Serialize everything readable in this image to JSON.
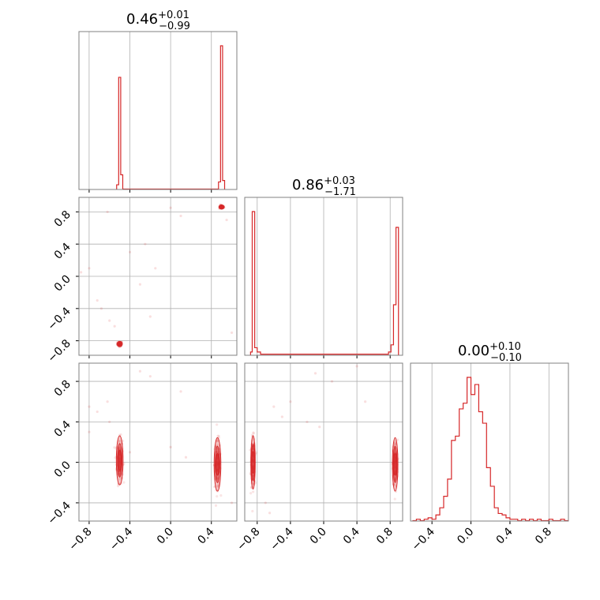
{
  "chart_data": {
    "type": "corner",
    "colors": {
      "series": "#d62728",
      "grid": "#b0b0b0",
      "frame": "#808080"
    },
    "grid": true,
    "panels": [
      {
        "id": "hist-0",
        "kind": "histogram",
        "title": {
          "value": "0.46",
          "plus": "+0.01",
          "minus": "−0.99"
        },
        "xlim": [
          -0.9,
          0.65
        ],
        "gridlines_x": [
          -0.8,
          -0.4,
          0.0,
          0.4
        ],
        "bins": [
          {
            "lo": -0.53,
            "hi": -0.51,
            "h": 0.03
          },
          {
            "lo": -0.51,
            "hi": -0.49,
            "h": 0.78
          },
          {
            "lo": -0.49,
            "hi": -0.47,
            "h": 0.1
          },
          {
            "lo": 0.47,
            "hi": 0.49,
            "h": 0.05
          },
          {
            "lo": 0.49,
            "hi": 0.51,
            "h": 1.0
          },
          {
            "lo": 0.51,
            "hi": 0.53,
            "h": 0.06
          }
        ]
      },
      {
        "id": "scatter-1-0",
        "kind": "scatter",
        "xlim": [
          -0.9,
          0.65
        ],
        "ylim": [
          -0.98,
          0.98
        ],
        "gridlines_x": [
          -0.8,
          -0.4,
          0.0,
          0.4
        ],
        "gridlines_y": [
          -0.8,
          -0.4,
          0.0,
          0.4,
          0.8
        ],
        "yticks": [
          "−0.8",
          "−0.4",
          "0.0",
          "0.4",
          "0.8"
        ],
        "yticks_values": [
          -0.8,
          -0.4,
          0.0,
          0.4,
          0.8
        ],
        "clusters": [
          {
            "x": -0.5,
            "y": -0.84,
            "sx": 0.012,
            "sy": 0.015,
            "n": 60
          },
          {
            "x": 0.5,
            "y": 0.86,
            "sx": 0.012,
            "sy": 0.012,
            "n": 60
          }
        ],
        "scatter": [
          [
            -0.72,
            -0.3
          ],
          [
            -0.68,
            -0.4
          ],
          [
            -0.6,
            -0.55
          ],
          [
            -0.55,
            -0.62
          ],
          [
            -0.3,
            -0.1
          ],
          [
            -0.25,
            0.4
          ],
          [
            -0.15,
            0.1
          ],
          [
            0.0,
            0.85
          ],
          [
            0.1,
            0.75
          ],
          [
            0.6,
            -0.7
          ],
          [
            -0.4,
            0.3
          ],
          [
            -0.8,
            0.1
          ],
          [
            -0.62,
            0.8
          ],
          [
            -0.2,
            -0.5
          ],
          [
            0.55,
            0.7
          ],
          [
            -0.88,
            0.05
          ]
        ]
      },
      {
        "id": "hist-1",
        "kind": "histogram",
        "title": {
          "value": "0.86",
          "plus": "+0.03",
          "minus": "−1.71"
        },
        "xlim": [
          -0.95,
          0.95
        ],
        "gridlines_x": [
          -0.8,
          -0.4,
          0.0,
          0.4,
          0.8
        ],
        "bins": [
          {
            "lo": -0.88,
            "hi": -0.86,
            "h": 0.02
          },
          {
            "lo": -0.86,
            "hi": -0.83,
            "h": 1.0
          },
          {
            "lo": -0.83,
            "hi": -0.8,
            "h": 0.05
          },
          {
            "lo": -0.8,
            "hi": -0.76,
            "h": 0.02
          },
          {
            "lo": -0.76,
            "hi": 0.78,
            "h": 0.005
          },
          {
            "lo": 0.78,
            "hi": 0.81,
            "h": 0.02
          },
          {
            "lo": 0.81,
            "hi": 0.84,
            "h": 0.07
          },
          {
            "lo": 0.84,
            "hi": 0.87,
            "h": 0.35
          },
          {
            "lo": 0.87,
            "hi": 0.9,
            "h": 0.89
          }
        ]
      },
      {
        "id": "scatter-2-0",
        "kind": "scatter",
        "xlim": [
          -0.9,
          0.65
        ],
        "ylim": [
          -0.58,
          0.98
        ],
        "gridlines_x": [
          -0.8,
          -0.4,
          0.0,
          0.4
        ],
        "gridlines_y": [
          -0.4,
          0.0,
          0.4,
          0.8
        ],
        "yticks": [
          "−0.4",
          "0.0",
          "0.4",
          "0.8"
        ],
        "yticks_values": [
          -0.4,
          0.0,
          0.4,
          0.8
        ],
        "xticks": [
          "−0.8",
          "−0.4",
          "0.0",
          "0.4"
        ],
        "xticks_values": [
          -0.8,
          -0.4,
          0.0,
          0.4
        ],
        "clusters": [
          {
            "x": -0.5,
            "y": 0.02,
            "sx": 0.015,
            "sy": 0.11,
            "n": 140
          },
          {
            "x": 0.46,
            "y": -0.02,
            "sx": 0.015,
            "sy": 0.12,
            "n": 140
          }
        ],
        "scatter": [
          [
            -0.8,
            0.55
          ],
          [
            -0.72,
            0.5
          ],
          [
            -0.62,
            0.6
          ],
          [
            -0.3,
            0.9
          ],
          [
            -0.2,
            0.85
          ],
          [
            0.1,
            0.7
          ],
          [
            -0.6,
            0.4
          ],
          [
            -0.4,
            0.1
          ],
          [
            0.0,
            0.15
          ],
          [
            0.15,
            0.05
          ],
          [
            0.6,
            -0.4
          ],
          [
            -0.8,
            0.3
          ]
        ]
      },
      {
        "id": "scatter-2-1",
        "kind": "scatter",
        "xlim": [
          -0.95,
          0.95
        ],
        "ylim": [
          -0.58,
          0.98
        ],
        "gridlines_x": [
          -0.8,
          -0.4,
          0.0,
          0.4,
          0.8
        ],
        "gridlines_y": [
          -0.4,
          0.0,
          0.4,
          0.8
        ],
        "xticks": [
          "−0.8",
          "−0.4",
          "0.0",
          "0.4",
          "0.8"
        ],
        "xticks_values": [
          -0.8,
          -0.4,
          0.0,
          0.4,
          0.8
        ],
        "clusters": [
          {
            "x": -0.85,
            "y": 0.0,
            "sx": 0.012,
            "sy": 0.12,
            "n": 140
          },
          {
            "x": 0.86,
            "y": -0.02,
            "sx": 0.015,
            "sy": 0.12,
            "n": 140
          }
        ],
        "scatter": [
          [
            -0.6,
            0.55
          ],
          [
            -0.5,
            0.45
          ],
          [
            -0.4,
            0.6
          ],
          [
            -0.1,
            0.88
          ],
          [
            0.1,
            0.8
          ],
          [
            0.4,
            0.95
          ],
          [
            -0.2,
            0.4
          ],
          [
            -0.05,
            0.35
          ],
          [
            0.5,
            0.6
          ],
          [
            -0.7,
            -0.4
          ],
          [
            -0.65,
            -0.5
          ]
        ]
      },
      {
        "id": "hist-2",
        "kind": "histogram",
        "title": {
          "value": "0.00",
          "plus": "+0.10",
          "minus": "−0.10"
        },
        "xlim": [
          -0.62,
          1.0
        ],
        "gridlines_x": [
          -0.4,
          0.0,
          0.4,
          0.8
        ],
        "xticks": [
          "−0.4",
          "0.0",
          "0.4",
          "0.8"
        ],
        "xticks_values": [
          -0.4,
          0.0,
          0.4,
          0.8
        ],
        "bins": [
          {
            "lo": -0.6,
            "hi": -0.56,
            "h": 0.0
          },
          {
            "lo": -0.56,
            "hi": -0.52,
            "h": 0.01
          },
          {
            "lo": -0.52,
            "hi": -0.48,
            "h": 0.0
          },
          {
            "lo": -0.48,
            "hi": -0.44,
            "h": 0.01
          },
          {
            "lo": -0.44,
            "hi": -0.4,
            "h": 0.02
          },
          {
            "lo": -0.4,
            "hi": -0.36,
            "h": 0.01
          },
          {
            "lo": -0.36,
            "hi": -0.32,
            "h": 0.04
          },
          {
            "lo": -0.32,
            "hi": -0.28,
            "h": 0.09
          },
          {
            "lo": -0.28,
            "hi": -0.24,
            "h": 0.17
          },
          {
            "lo": -0.24,
            "hi": -0.2,
            "h": 0.29
          },
          {
            "lo": -0.2,
            "hi": -0.16,
            "h": 0.56
          },
          {
            "lo": -0.16,
            "hi": -0.12,
            "h": 0.59
          },
          {
            "lo": -0.12,
            "hi": -0.08,
            "h": 0.78
          },
          {
            "lo": -0.08,
            "hi": -0.04,
            "h": 0.82
          },
          {
            "lo": -0.04,
            "hi": 0.0,
            "h": 1.0
          },
          {
            "lo": 0.0,
            "hi": 0.04,
            "h": 0.88
          },
          {
            "lo": 0.04,
            "hi": 0.08,
            "h": 0.95
          },
          {
            "lo": 0.08,
            "hi": 0.12,
            "h": 0.76
          },
          {
            "lo": 0.12,
            "hi": 0.16,
            "h": 0.68
          },
          {
            "lo": 0.16,
            "hi": 0.2,
            "h": 0.37
          },
          {
            "lo": 0.2,
            "hi": 0.24,
            "h": 0.24
          },
          {
            "lo": 0.24,
            "hi": 0.28,
            "h": 0.09
          },
          {
            "lo": 0.28,
            "hi": 0.32,
            "h": 0.05
          },
          {
            "lo": 0.32,
            "hi": 0.36,
            "h": 0.04
          },
          {
            "lo": 0.36,
            "hi": 0.4,
            "h": 0.02
          },
          {
            "lo": 0.4,
            "hi": 0.44,
            "h": 0.01
          },
          {
            "lo": 0.44,
            "hi": 0.48,
            "h": 0.01
          },
          {
            "lo": 0.48,
            "hi": 0.52,
            "h": 0.0
          },
          {
            "lo": 0.52,
            "hi": 0.56,
            "h": 0.01
          },
          {
            "lo": 0.56,
            "hi": 0.6,
            "h": 0.0
          },
          {
            "lo": 0.6,
            "hi": 0.64,
            "h": 0.01
          },
          {
            "lo": 0.64,
            "hi": 0.68,
            "h": 0.0
          },
          {
            "lo": 0.68,
            "hi": 0.72,
            "h": 0.01
          },
          {
            "lo": 0.72,
            "hi": 0.76,
            "h": 0.0
          },
          {
            "lo": 0.76,
            "hi": 0.8,
            "h": 0.0
          },
          {
            "lo": 0.8,
            "hi": 0.84,
            "h": 0.01
          },
          {
            "lo": 0.84,
            "hi": 0.88,
            "h": 0.0
          },
          {
            "lo": 0.88,
            "hi": 0.92,
            "h": 0.0
          },
          {
            "lo": 0.92,
            "hi": 0.96,
            "h": 0.01
          },
          {
            "lo": 0.96,
            "hi": 1.0,
            "h": 0.0
          }
        ]
      }
    ]
  }
}
